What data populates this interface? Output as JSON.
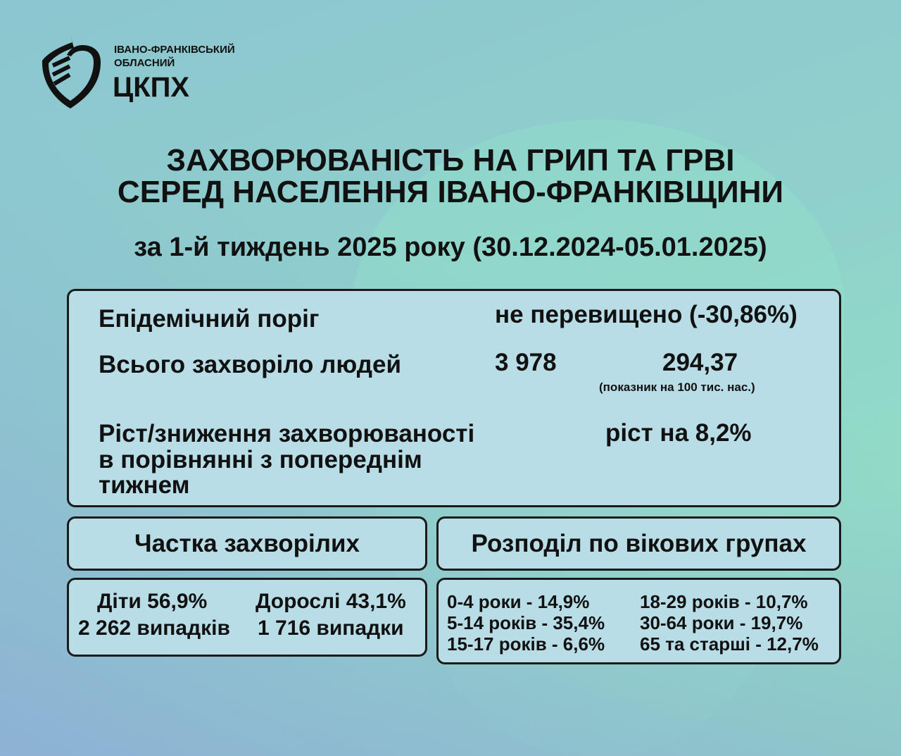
{
  "logo": {
    "line1": "ІВАНО-ФРАНКІВСЬКИЙ",
    "line2": "ОБЛАСНИЙ",
    "abbr": "ЦКПХ"
  },
  "title": {
    "line1": "ЗАХВОРЮВАНІСТЬ НА ГРИП ТА ГРВІ",
    "line2": "СЕРЕД НАСЕЛЕННЯ ІВАНО-ФРАНКІВЩИНИ",
    "subtitle": "за 1-й тиждень 2025 року (30.12.2024-05.01.2025)"
  },
  "summary": {
    "threshold_label": "Епідемічний поріг",
    "threshold_value": "не перевищено (-30,86%)",
    "total_label": "Всього захворіло людей",
    "total_value": "3 978",
    "rate_value": "294,37",
    "rate_note": "(показник на 100 тис. нас.)",
    "change_label_1": "Ріст/зниження захворюваності",
    "change_label_2": "в порівнянні з попереднім",
    "change_label_3": "тижнем",
    "change_value": "ріст на 8,2%"
  },
  "share": {
    "header": "Частка захворілих",
    "children": "Діти 56,9%",
    "children_cases": "2 262 випадків",
    "adults": "Дорослі 43,1%",
    "adults_cases": "1 716 випадки"
  },
  "age": {
    "header": "Розподіл по вікових групах",
    "groups": [
      "0-4 роки - 14,9%",
      "5-14 років - 35,4%",
      "15-17 років - 6,6%",
      "18-29 років - 10,7%",
      "30-64 роки - 19,7%",
      "65 та старші - 12,7%"
    ]
  }
}
